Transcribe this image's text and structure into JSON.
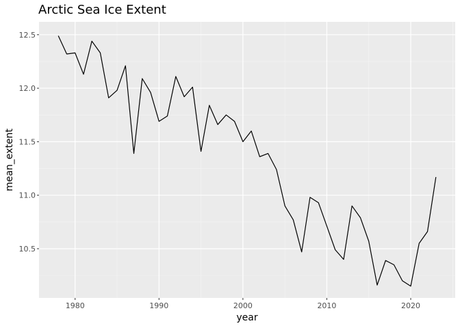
{
  "chart_data": {
    "type": "line",
    "title": "Arctic Sea Ice Extent",
    "xlabel": "year",
    "ylabel": "mean_extent",
    "xlim": [
      1975.7,
      2025.3
    ],
    "ylim": [
      10.04,
      12.62
    ],
    "x_ticks": [
      1980,
      1990,
      2000,
      2010,
      2020
    ],
    "x_tick_labels": [
      "1980",
      "1990",
      "2000",
      "2010",
      "2020"
    ],
    "y_ticks": [
      10.5,
      11.0,
      11.5,
      12.0,
      12.5
    ],
    "y_tick_labels": [
      "10.5",
      "11.0",
      "11.5",
      "12.0",
      "12.5"
    ],
    "grid": true,
    "legend": "none",
    "panel_background": "#ebebeb",
    "grid_major_color": "#ffffff",
    "grid_minor_color": "#f5f5f5",
    "line_color": "#000000",
    "x": [
      1978,
      1979,
      1980,
      1981,
      1982,
      1983,
      1984,
      1985,
      1986,
      1987,
      1988,
      1989,
      1990,
      1991,
      1992,
      1993,
      1994,
      1995,
      1996,
      1997,
      1998,
      1999,
      2000,
      2001,
      2002,
      2003,
      2004,
      2005,
      2006,
      2007,
      2008,
      2009,
      2010,
      2011,
      2012,
      2013,
      2014,
      2015,
      2016,
      2017,
      2018,
      2019,
      2020,
      2021,
      2022,
      2023
    ],
    "y": [
      12.49,
      12.32,
      12.33,
      12.13,
      12.44,
      12.33,
      11.91,
      11.98,
      12.21,
      11.39,
      12.09,
      11.96,
      11.69,
      11.74,
      12.11,
      11.92,
      12.01,
      11.41,
      11.84,
      11.66,
      11.75,
      11.69,
      11.5,
      11.6,
      11.36,
      11.39,
      11.24,
      10.9,
      10.77,
      10.47,
      10.98,
      10.93,
      10.71,
      10.49,
      10.4,
      10.9,
      10.79,
      10.57,
      10.16,
      10.39,
      10.35,
      10.2,
      10.15,
      10.55,
      10.66,
      11.17
    ]
  }
}
